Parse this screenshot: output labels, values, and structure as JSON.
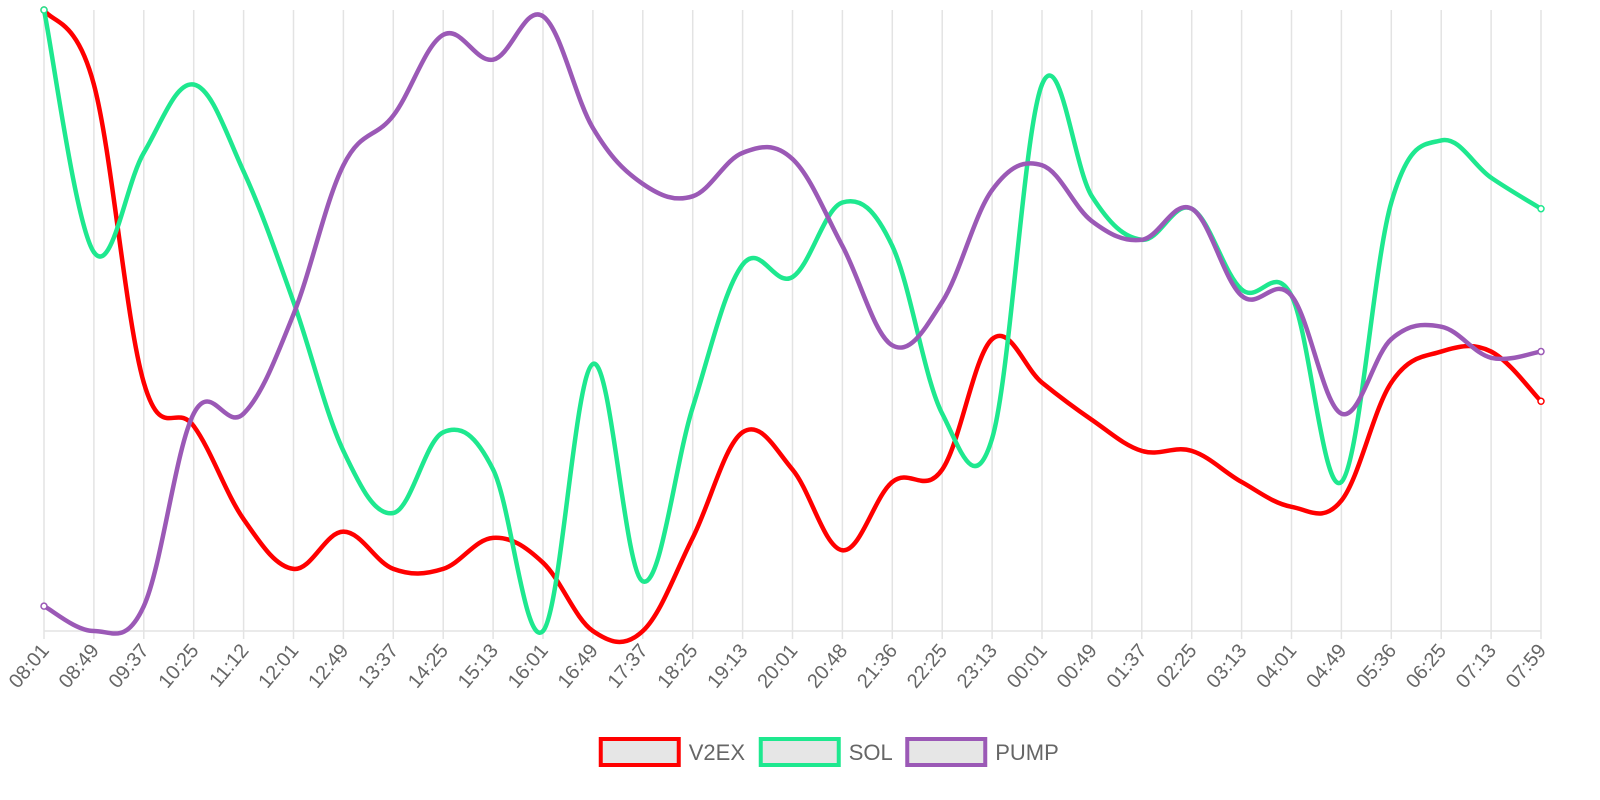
{
  "chart_data": {
    "type": "line",
    "title": "",
    "xlabel": "",
    "ylabel": "",
    "grid": "vertical",
    "legend_position": "bottom",
    "categories": [
      "08:01",
      "08:49",
      "09:37",
      "10:25",
      "11:12",
      "12:01",
      "12:49",
      "13:37",
      "14:25",
      "15:13",
      "16:01",
      "16:49",
      "17:37",
      "18:25",
      "19:13",
      "20:01",
      "20:48",
      "21:36",
      "22:25",
      "23:13",
      "00:01",
      "00:49",
      "01:37",
      "02:25",
      "03:13",
      "04:01",
      "04:49",
      "05:36",
      "06:25",
      "07:13",
      "07:59"
    ],
    "ylim": [
      0,
      100
    ],
    "series": [
      {
        "name": "V2EX",
        "color": "#ff0000",
        "values": [
          100,
          88,
          40,
          33,
          18,
          10,
          16,
          10,
          10,
          15,
          11,
          0,
          0,
          15,
          32,
          26,
          13,
          24,
          26,
          47,
          40,
          34,
          29,
          29,
          24,
          20,
          21,
          40,
          45,
          45,
          37
        ]
      },
      {
        "name": "SOL",
        "color": "#1ee88f",
        "values": [
          100,
          61,
          77,
          88,
          74,
          53,
          29,
          19,
          32,
          26,
          0,
          43,
          8,
          36,
          59,
          57,
          69,
          62,
          35,
          31,
          88,
          70,
          63,
          68,
          55,
          54,
          24,
          69,
          79,
          73,
          68
        ]
      },
      {
        "name": "PUMP",
        "color": "#9b59b6",
        "values": [
          4,
          0,
          4,
          35,
          35,
          51,
          75,
          83,
          96,
          92,
          99,
          81,
          72,
          70,
          77,
          76,
          62,
          46,
          53,
          71,
          75,
          66,
          63,
          68,
          54,
          54,
          35,
          47,
          49,
          44,
          45
        ]
      }
    ]
  }
}
